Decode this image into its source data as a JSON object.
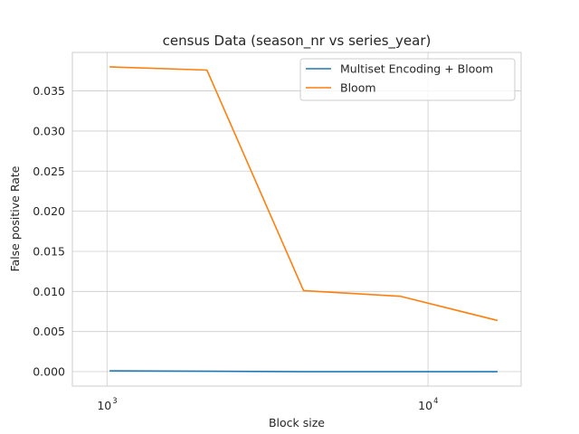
{
  "chart_data": {
    "type": "line",
    "title": "census Data (season_nr vs series_year)",
    "xlabel": "Block size",
    "ylabel": "False positive Rate",
    "xscale": "log",
    "x": [
      1024,
      2048,
      4096,
      8192,
      16384
    ],
    "xlim": [
      780,
      19500
    ],
    "ylim": [
      -0.0018,
      0.0398
    ],
    "yticks": [
      0.0,
      0.005,
      0.01,
      0.015,
      0.02,
      0.025,
      0.03,
      0.035
    ],
    "ytick_labels": [
      "0.000",
      "0.005",
      "0.010",
      "0.015",
      "0.020",
      "0.025",
      "0.030",
      "0.035"
    ],
    "xticks": [
      {
        "value": 1000,
        "base": "10",
        "exp": "3"
      },
      {
        "value": 10000,
        "base": "10",
        "exp": "4"
      }
    ],
    "grid": true,
    "legend_position": "top-right",
    "series": [
      {
        "name": "Multiset Encoding + Bloom",
        "color": "#1f77b4",
        "values": [
          0.0001,
          5e-05,
          0.0,
          0.0,
          0.0
        ]
      },
      {
        "name": "Bloom",
        "color": "#ff7f0e",
        "values": [
          0.038,
          0.0376,
          0.0101,
          0.0094,
          0.0064
        ]
      }
    ]
  }
}
